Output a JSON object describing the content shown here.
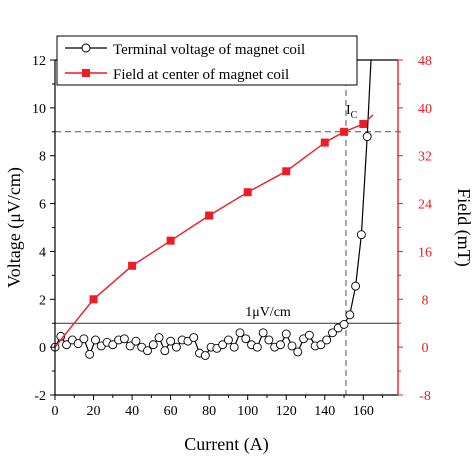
{
  "chart_data": {
    "type": "line",
    "title": "",
    "xlabel": "Current (A)",
    "ylabel_left": "Voltage (μV/cm)",
    "ylabel_right": "Field (mT)",
    "xlim": [
      0,
      178
    ],
    "ylim_left": [
      -2,
      12
    ],
    "ylim_right": [
      -8,
      48
    ],
    "x_ticks": [
      0,
      20,
      40,
      60,
      80,
      100,
      120,
      140,
      160
    ],
    "y_ticks_left": [
      -2,
      0,
      2,
      4,
      6,
      8,
      10,
      12
    ],
    "y_ticks_right": [
      -8,
      0,
      8,
      16,
      24,
      32,
      40,
      48
    ],
    "x_tick_labels": [
      "0",
      "20",
      "40",
      "60",
      "80",
      "100",
      "120",
      "140",
      "160"
    ],
    "y_tick_labels_left": [
      "-2",
      "0",
      "2",
      "4",
      "6",
      "8",
      "10",
      "12"
    ],
    "y_tick_labels_right": [
      "-8",
      "0",
      "8",
      "16",
      "24",
      "32",
      "40",
      "48"
    ],
    "grid": false,
    "legend_position": "top-left",
    "series": [
      {
        "name": "Terminal voltage of magnet coil",
        "axis": "left",
        "color": "#000000",
        "marker": "open-circle",
        "x": [
          0,
          3,
          6,
          9,
          12,
          15,
          18,
          21,
          24,
          27,
          30,
          33,
          36,
          39,
          42,
          45,
          48,
          51,
          54,
          57,
          60,
          63,
          66,
          69,
          72,
          75,
          78,
          81,
          84,
          87,
          90,
          93,
          96,
          99,
          102,
          105,
          108,
          111,
          114,
          117,
          120,
          123,
          126,
          129,
          132,
          135,
          138,
          141,
          144,
          147,
          150,
          153,
          156,
          159,
          162,
          164
        ],
        "y": [
          0.0,
          0.45,
          0.1,
          0.3,
          0.15,
          0.35,
          -0.3,
          0.3,
          0.05,
          0.2,
          0.1,
          0.3,
          0.35,
          0.05,
          0.25,
          0.0,
          -0.15,
          0.1,
          0.4,
          -0.15,
          0.25,
          0.0,
          0.3,
          0.25,
          0.4,
          -0.25,
          -0.35,
          0.0,
          -0.05,
          0.1,
          0.3,
          0.0,
          0.6,
          0.35,
          0.1,
          0.0,
          0.6,
          0.3,
          0.0,
          0.1,
          0.55,
          0.05,
          -0.2,
          0.35,
          0.5,
          0.05,
          0.1,
          0.3,
          0.6,
          0.8,
          0.95,
          1.35,
          2.55,
          4.7,
          8.8,
          12.0
        ]
      },
      {
        "name": "Field at center of magnet coil",
        "axis": "right",
        "color": "#ee1c25",
        "marker": "filled-square",
        "x": [
          0,
          20,
          40,
          60,
          80,
          100,
          120,
          140,
          150,
          160,
          165
        ],
        "y": [
          0.0,
          8.0,
          13.6,
          17.8,
          22.0,
          25.9,
          29.4,
          34.2,
          36.0,
          37.3,
          38.8
        ],
        "marker_x": [
          20,
          40,
          60,
          80,
          100,
          120,
          140,
          150,
          160
        ],
        "marker_y": [
          8.0,
          13.6,
          17.8,
          22.0,
          25.9,
          29.4,
          34.2,
          36.0,
          37.3
        ]
      }
    ],
    "reference_lines": [
      {
        "orientation": "horizontal",
        "axis": "left",
        "value": 1,
        "style": "solid",
        "label": "1μV/cm"
      },
      {
        "orientation": "horizontal",
        "axis": "left",
        "value": 9,
        "style": "dashed",
        "label": ""
      },
      {
        "orientation": "vertical",
        "value": 151,
        "style": "dashed",
        "label": "IC"
      }
    ],
    "annotations": {
      "ic_main": "I",
      "ic_sub": "C",
      "threshold_label": "1μV/cm"
    }
  }
}
